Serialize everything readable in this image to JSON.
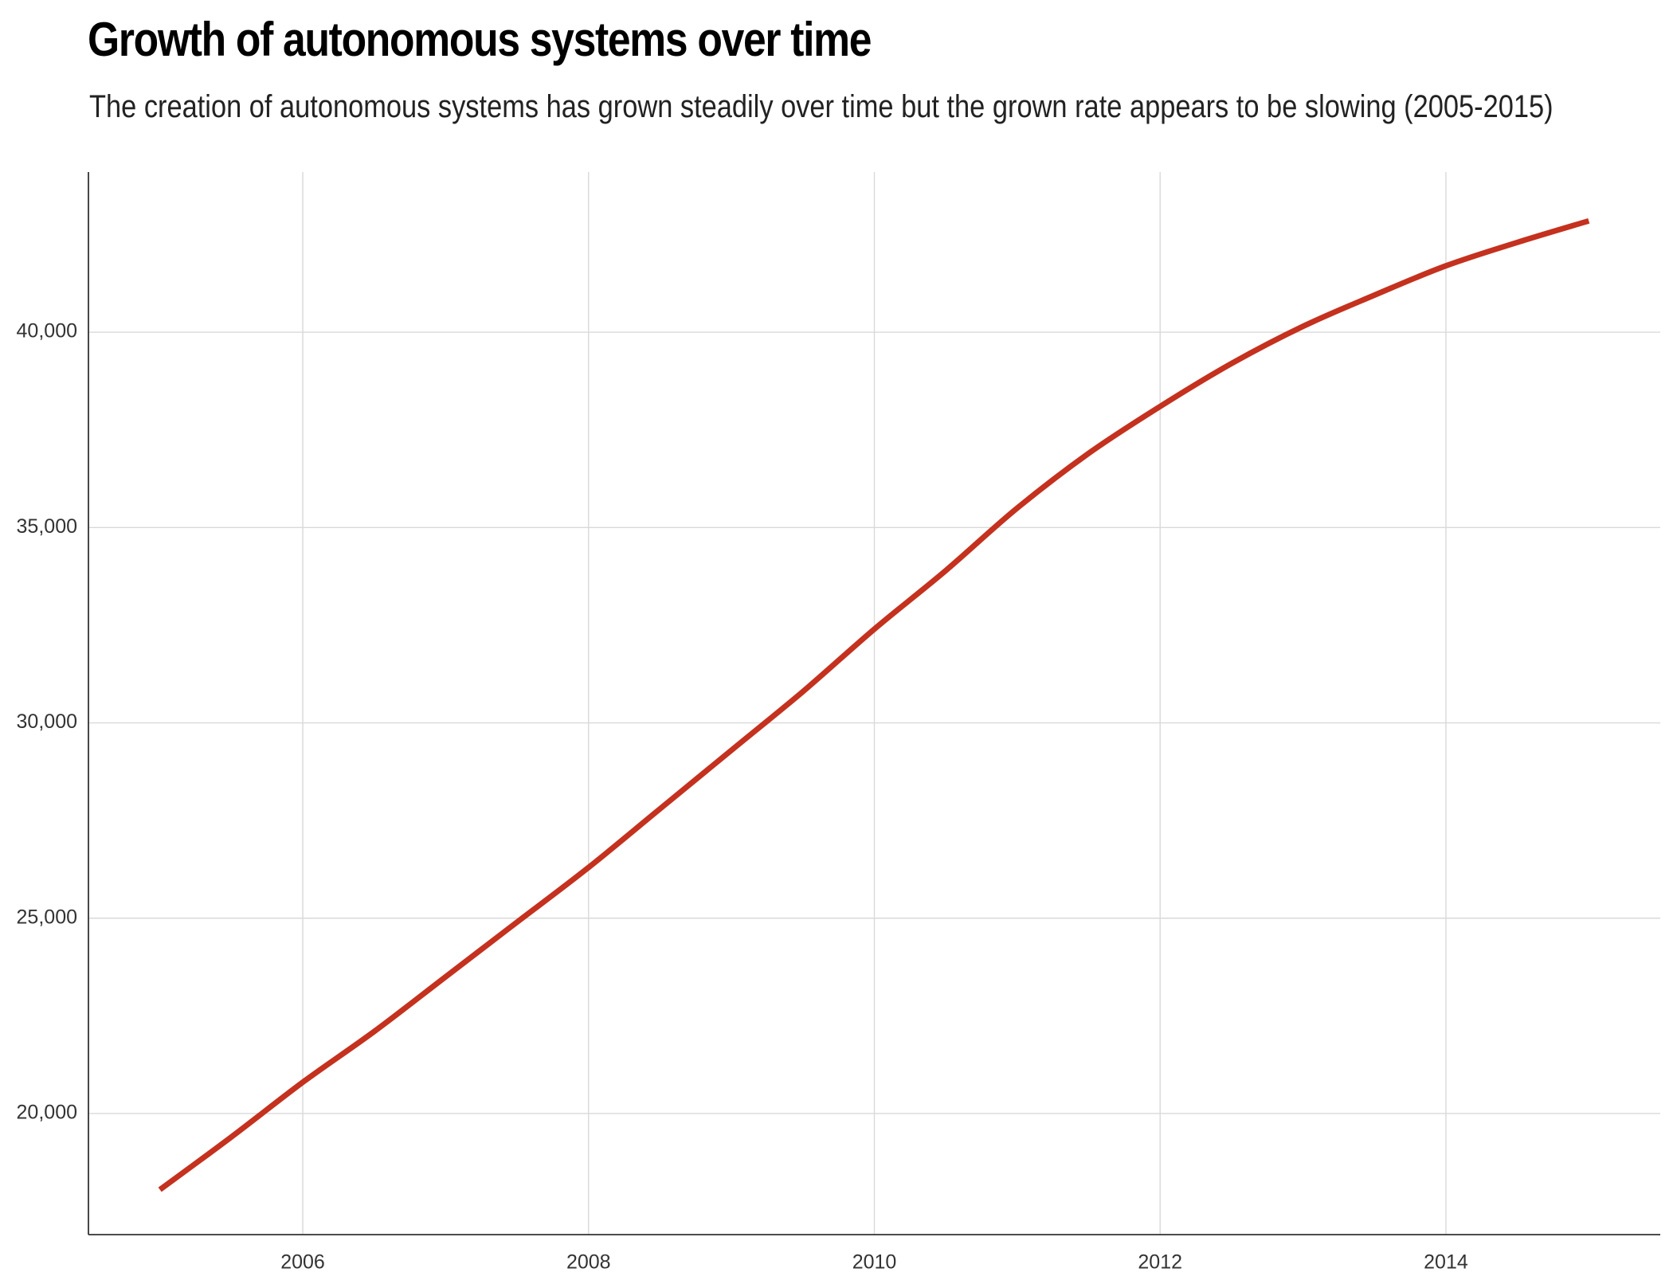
{
  "chart_data": {
    "type": "line",
    "title": "Growth of autonomous systems over time",
    "subtitle": "The creation of autonomous systems has grown steadily over time but the grown rate appears to be slowing (2005-2015)",
    "xlabel": "",
    "ylabel": "",
    "x_ticks": [
      "2006",
      "2008",
      "2010",
      "2012",
      "2014"
    ],
    "y_ticks": [
      "20,000",
      "25,000",
      "30,000",
      "35,000",
      "40,000"
    ],
    "x_tick_values": [
      2006,
      2008,
      2010,
      2012,
      2014
    ],
    "y_tick_values": [
      20000,
      25000,
      30000,
      35000,
      40000
    ],
    "xlim": [
      2004.5,
      2015.5
    ],
    "ylim": [
      16900,
      44100
    ],
    "grid": true,
    "legend": "none",
    "series": [
      {
        "color": "#c4311e",
        "x": [
          2005,
          2005.5,
          2006,
          2006.5,
          2007,
          2007.5,
          2008,
          2008.5,
          2009,
          2009.5,
          2010,
          2010.5,
          2011,
          2011.5,
          2012,
          2012.5,
          2013,
          2013.5,
          2014,
          2014.5,
          2015
        ],
        "y": [
          18050,
          19400,
          20800,
          22100,
          23500,
          24900,
          26300,
          27800,
          29300,
          30800,
          32400,
          33900,
          35500,
          36900,
          38100,
          39200,
          40150,
          40950,
          41700,
          42300,
          42850
        ]
      }
    ]
  }
}
